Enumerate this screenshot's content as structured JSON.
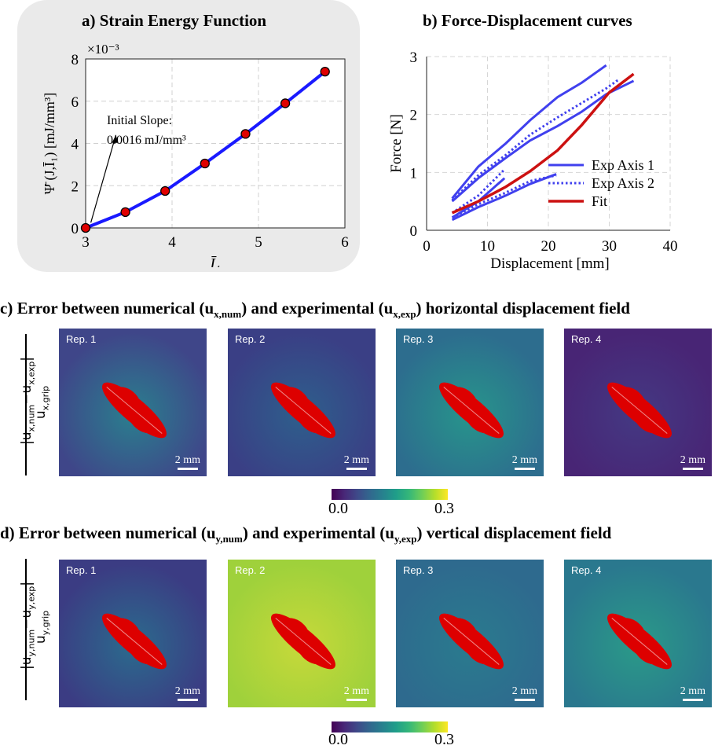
{
  "chart_data": [
    {
      "panel": "a",
      "type": "line",
      "title": "a) Strain Energy Function",
      "xlabel": "Ī₁",
      "ylabel": "Ψ̄ (J,Ī₁) [mJ/mm³]",
      "exponent_label": "×10⁻³",
      "xlim": [
        3,
        6
      ],
      "ylim": [
        0,
        8
      ],
      "xticks": [
        3,
        4,
        5,
        6
      ],
      "yticks": [
        0,
        2,
        4,
        6,
        8
      ],
      "x": [
        3.0,
        3.46,
        3.92,
        4.38,
        4.85,
        5.31,
        5.77
      ],
      "y": [
        0.0,
        0.75,
        1.75,
        3.05,
        4.45,
        5.9,
        7.4
      ],
      "line_color": "#1a1aff",
      "marker_color": "#e00000",
      "annotation": {
        "line1": "Initial Slope:",
        "line2": "0.0016 mJ/mm³"
      },
      "grid": true
    },
    {
      "panel": "b",
      "type": "line",
      "title": "b) Force-Displacement curves",
      "xlabel": "Displacement [mm]",
      "ylabel": "Force [N]",
      "xlim": [
        0,
        40
      ],
      "ylim": [
        0,
        3
      ],
      "xticks": [
        0,
        10,
        20,
        30,
        40
      ],
      "yticks": [
        0,
        1,
        2,
        3
      ],
      "legend_position": "bottom-right",
      "series": [
        {
          "name": "Exp Axis 1",
          "style": "solid",
          "color": "#4040ee",
          "legend": true,
          "x": [
            4.2,
            8.5,
            13,
            17,
            21.5,
            25.5,
            29.5
          ],
          "y": [
            0.55,
            1.1,
            1.5,
            1.9,
            2.3,
            2.55,
            2.85
          ]
        },
        {
          "name": "Exp Axis 1 b",
          "style": "solid",
          "color": "#4040ee",
          "legend": false,
          "x": [
            4.2,
            8.5,
            13,
            17,
            21.5,
            25.5,
            29.5,
            34
          ],
          "y": [
            0.5,
            0.9,
            1.25,
            1.55,
            1.8,
            2.05,
            2.35,
            2.58
          ]
        },
        {
          "name": "Exp Axis 1 c",
          "style": "solid",
          "color": "#4040ee",
          "legend": false,
          "x": [
            4.2,
            8.5,
            12.8
          ],
          "y": [
            0.22,
            0.5,
            0.9
          ]
        },
        {
          "name": "Exp Axis 1 d",
          "style": "solid",
          "color": "#4040ee",
          "legend": false,
          "x": [
            4.2,
            8.5,
            13,
            17,
            21.3
          ],
          "y": [
            0.18,
            0.4,
            0.6,
            0.8,
            0.97
          ]
        },
        {
          "name": "Exp Axis 2",
          "style": "dotted",
          "color": "#4040ee",
          "legend": true,
          "x": [
            4.2,
            8.5,
            13,
            17,
            21.5,
            25.5,
            29.5,
            31.5
          ],
          "y": [
            0.52,
            0.95,
            1.3,
            1.65,
            1.95,
            2.2,
            2.45,
            2.6
          ]
        },
        {
          "name": "Exp Axis 2 b",
          "style": "dotted",
          "color": "#4040ee",
          "legend": false,
          "x": [
            4.2,
            8.5,
            12.8
          ],
          "y": [
            0.3,
            0.6,
            1.05
          ]
        },
        {
          "name": "Exp Axis 2 c",
          "style": "dotted",
          "color": "#4040ee",
          "legend": false,
          "x": [
            4.2,
            8.5,
            13,
            17,
            21.3
          ],
          "y": [
            0.22,
            0.45,
            0.65,
            0.85,
            0.95
          ]
        },
        {
          "name": "Fit",
          "style": "solid",
          "color": "#cc1111",
          "legend": true,
          "x": [
            4.2,
            8.5,
            13,
            17,
            21.5,
            25.5,
            30,
            34
          ],
          "y": [
            0.3,
            0.5,
            0.75,
            1.02,
            1.38,
            1.82,
            2.38,
            2.7
          ]
        }
      ],
      "grid": true
    }
  ],
  "section_c": {
    "title_pre": "c) Error between numerical (u",
    "sub_num": "x,num",
    "title_mid": ") and experimental (u",
    "sub_exp": "x,exp",
    "title_post": ") horizontal displacement field",
    "ylabel_top": "|u",
    "ylabel_top_sub": "x,num",
    "ylabel_minus": "−u",
    "ylabel_minus_sub": "x,exp",
    "ylabel_top_end": "|",
    "ylabel_bottom": "u",
    "ylabel_bottom_sub": "x,grip",
    "colorbar_min": "0.0",
    "colorbar_max": "0.3",
    "tiles": [
      {
        "label": "Rep. 1",
        "scale": "2 mm",
        "bg": "#3f4689",
        "glow": "#2a7f8e"
      },
      {
        "label": "Rep. 2",
        "scale": "2 mm",
        "bg": "#3a3f85",
        "glow": "#2e5f8c"
      },
      {
        "label": "Rep. 3",
        "scale": "2 mm",
        "bg": "#2d6d8e",
        "glow": "#27958b"
      },
      {
        "label": "Rep. 4",
        "scale": "2 mm",
        "bg": "#482575",
        "glow": "#443983"
      }
    ]
  },
  "section_d": {
    "title_pre": "d) Error between numerical (u",
    "sub_num": "y,num",
    "title_mid": ") and experimental (u",
    "sub_exp": "y,exp",
    "title_post": ") vertical displacement field",
    "ylabel_top": "|u",
    "ylabel_top_sub": "y,num",
    "ylabel_minus": "−u",
    "ylabel_minus_sub": "y,exp",
    "ylabel_top_end": "|",
    "ylabel_bottom": "u",
    "ylabel_bottom_sub": "y,grip",
    "colorbar_min": "0.0",
    "colorbar_max": "0.3",
    "tiles": [
      {
        "label": "Rep. 1",
        "scale": "2 mm",
        "bg": "#3b3c83",
        "glow": "#2b6b8d"
      },
      {
        "label": "Rep. 2",
        "scale": "2 mm",
        "bg": "#9fd13b",
        "glow": "#c7d93a"
      },
      {
        "label": "Rep. 3",
        "scale": "2 mm",
        "bg": "#2e6a8e",
        "glow": "#2a7b8e"
      },
      {
        "label": "Rep. 4",
        "scale": "2 mm",
        "bg": "#2a788e",
        "glow": "#2a9a88"
      }
    ]
  },
  "colors": {
    "specimen": "#dd0000"
  }
}
